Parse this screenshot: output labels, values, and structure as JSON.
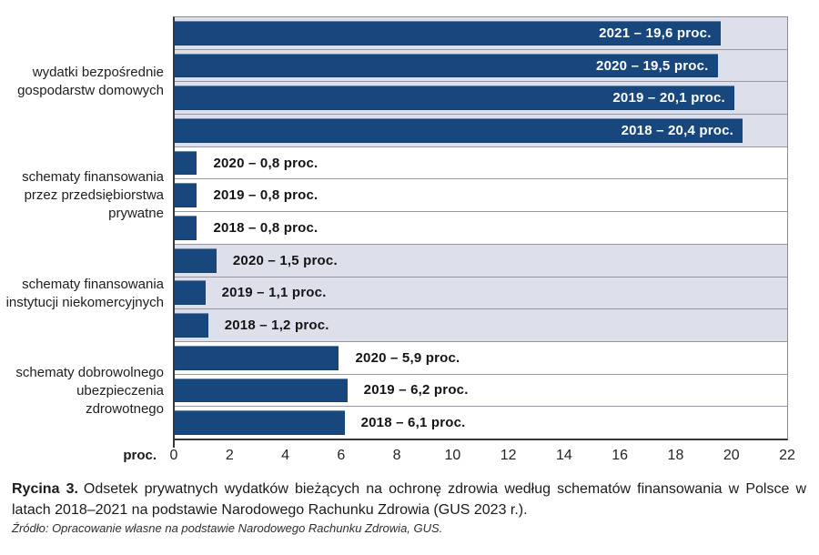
{
  "colors": {
    "bar": "#17477c",
    "band_lavender": "#dde0ea",
    "band_white": "#ffffff",
    "bar_label_inside": "#ffffff",
    "row_separator": "#97979f",
    "plot_border": "#8b8b94",
    "axis_line": "#36363b"
  },
  "chart_data": {
    "type": "bar",
    "orientation": "horizontal",
    "unit": "proc.",
    "x_axis": {
      "label": "proc.",
      "ticks": [
        0,
        2,
        4,
        6,
        8,
        10,
        12,
        14,
        16,
        18,
        20,
        22
      ],
      "min": 0,
      "max": 22,
      "grid": false
    },
    "legend": "none",
    "groups": [
      {
        "category": "wydatki bezpośrednie gospodarstw domowych",
        "label_lines": [
          "wydatki bezpośrednie",
          "gospodarstw domowych"
        ],
        "band": "lavender",
        "bars": [
          {
            "year": "2021",
            "value": 19.6,
            "label": "2021 – 19,6 proc.",
            "label_position": "inside"
          },
          {
            "year": "2020",
            "value": 19.5,
            "label": "2020 – 19,5 proc.",
            "label_position": "inside"
          },
          {
            "year": "2019",
            "value": 20.1,
            "label": "2019 – 20,1 proc.",
            "label_position": "inside"
          },
          {
            "year": "2018",
            "value": 20.4,
            "label": "2018 – 20,4 proc.",
            "label_position": "inside"
          }
        ]
      },
      {
        "category": "schematy finansowania przez przedsiębiorstwa prywatne",
        "label_lines": [
          "schematy finansowania",
          "przez przedsiębiorstwa",
          "prywatne"
        ],
        "band": "white",
        "bars": [
          {
            "year": "2020",
            "value": 0.8,
            "label": "2020 – 0,8 proc.",
            "label_position": "outside"
          },
          {
            "year": "2019",
            "value": 0.8,
            "label": "2019 – 0,8 proc.",
            "label_position": "outside"
          },
          {
            "year": "2018",
            "value": 0.8,
            "label": "2018 – 0,8 proc.",
            "label_position": "outside"
          }
        ]
      },
      {
        "category": "schematy finansowania instytucji niekomercyjnych",
        "label_lines": [
          "schematy finansowania",
          "instytucji niekomercyjnych"
        ],
        "band": "lavender",
        "bars": [
          {
            "year": "2020",
            "value": 1.5,
            "label": "2020 – 1,5 proc.",
            "label_position": "outside"
          },
          {
            "year": "2019",
            "value": 1.1,
            "label": "2019 – 1,1 proc.",
            "label_position": "outside"
          },
          {
            "year": "2018",
            "value": 1.2,
            "label": "2018 – 1,2 proc.",
            "label_position": "outside"
          }
        ]
      },
      {
        "category": "schematy dobrowolnego ubezpieczenia zdrowotnego",
        "label_lines": [
          "schematy dobrowolnego",
          "ubezpieczenia zdrowotnego"
        ],
        "band": "white",
        "bars": [
          {
            "year": "2020",
            "value": 5.9,
            "label": "2020 – 5,9 proc.",
            "label_position": "outside"
          },
          {
            "year": "2019",
            "value": 6.2,
            "label": "2019 – 6,2 proc.",
            "label_position": "outside"
          },
          {
            "year": "2018",
            "value": 6.1,
            "label": "2018 – 6,1 proc.",
            "label_position": "outside"
          }
        ]
      }
    ]
  },
  "caption": {
    "figure_label": "Rycina 3.",
    "text": "Odsetek prywatnych wydatków bieżących na ochronę zdrowia według schematów finansowania w Polsce w latach 2018–2021 na podstawie Narodowego Rachunku Zdrowia (GUS 2023 r.)."
  },
  "source": "Źródło: Opracowanie własne na podstawie Narodowego Rachunku Zdrowia, GUS."
}
